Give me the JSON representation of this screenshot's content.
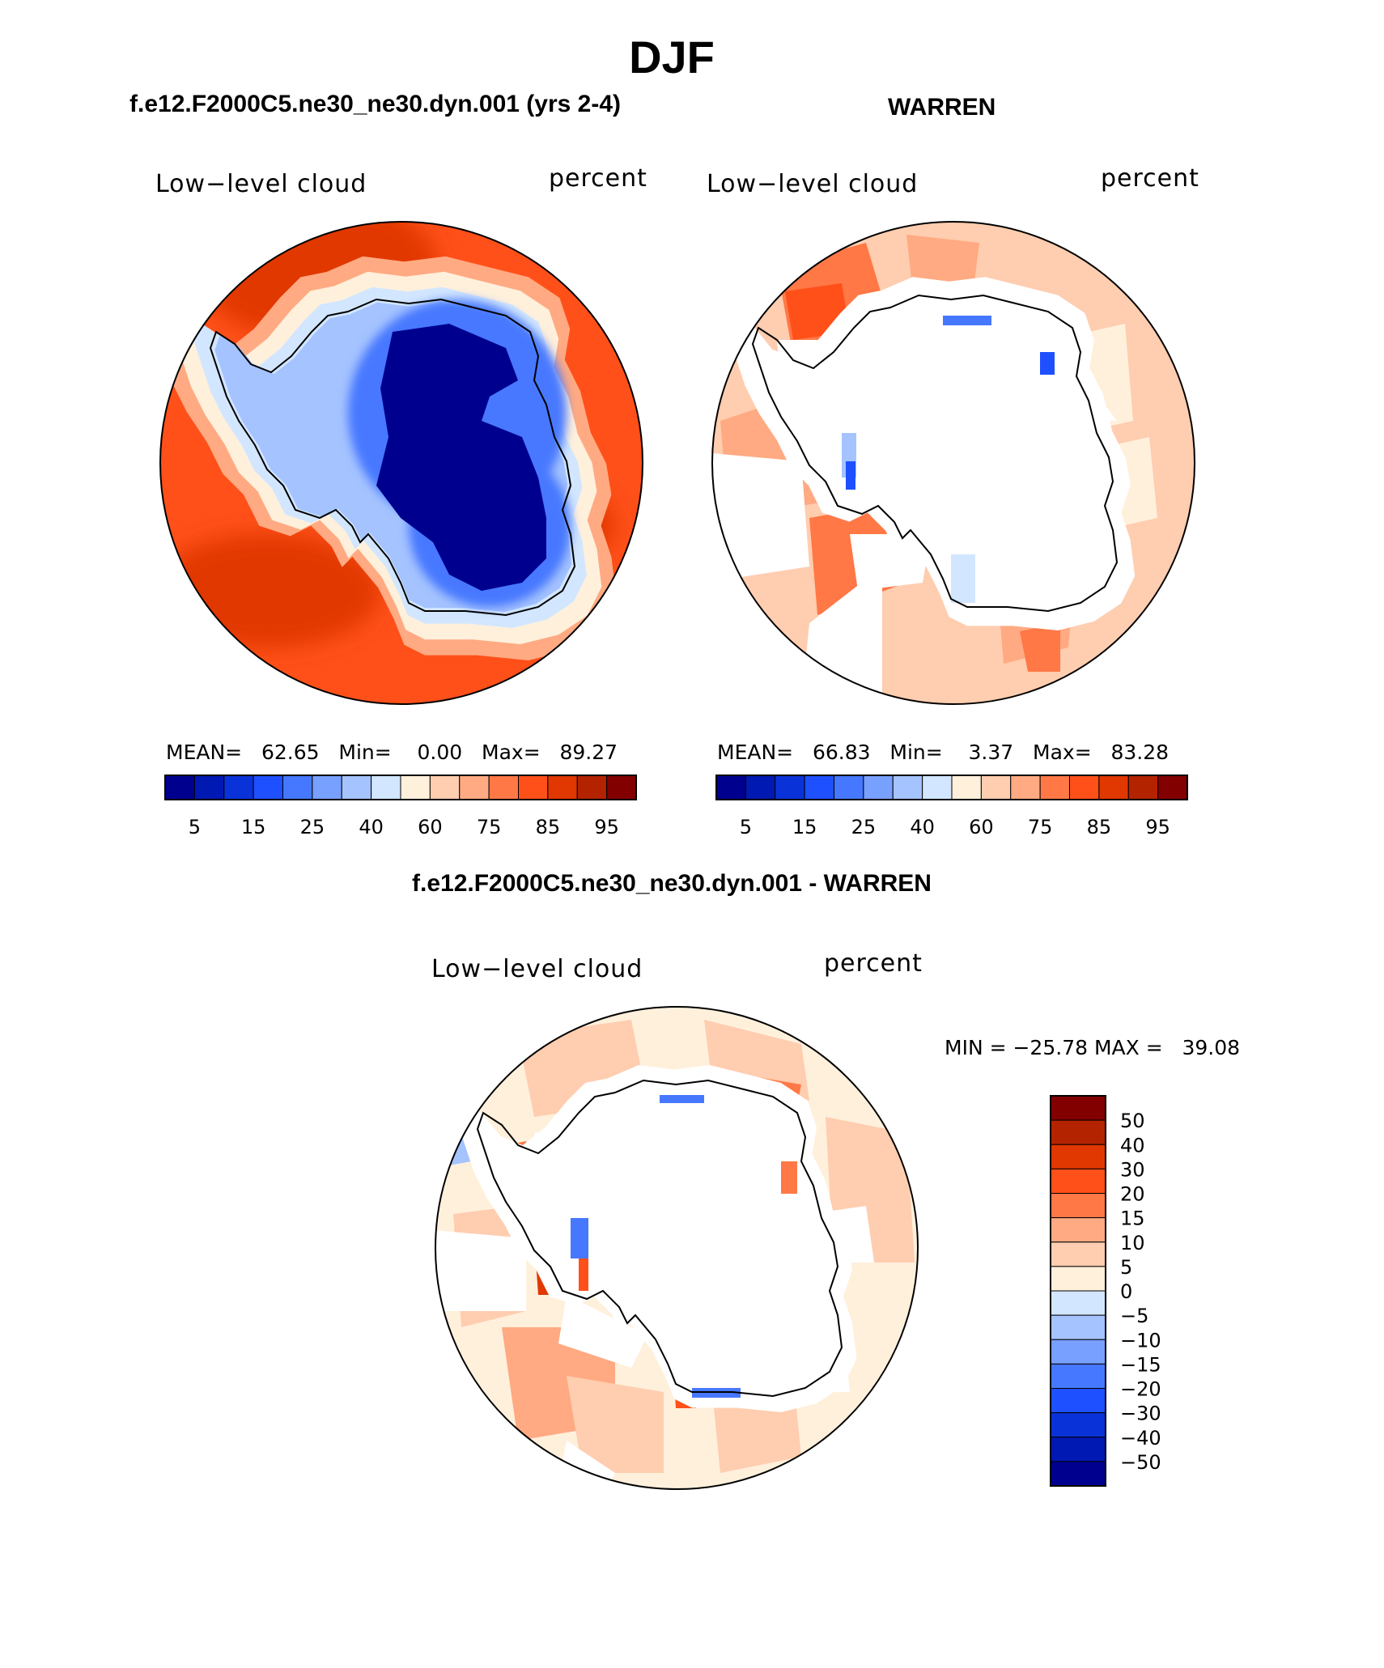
{
  "figure": {
    "title": "DJF",
    "panel_titles": {
      "model": "f.e12.F2000C5.ne30_ne30.dyn.001 (yrs 2-4)",
      "obs": "WARREN",
      "diff": "f.e12.F2000C5.ne30_ne30.dyn.001 - WARREN"
    }
  },
  "panels": {
    "model": {
      "variable": "Low−level cloud",
      "units": "percent",
      "mean_label": "MEAN=",
      "mean_value": "62.65",
      "min_label": "Min=",
      "min_value": "0.00",
      "max_label": "Max=",
      "max_value": "89.27"
    },
    "obs": {
      "variable": "Low−level cloud",
      "units": "percent",
      "mean_label": "MEAN=",
      "mean_value": "66.83",
      "min_label": "Min=",
      "min_value": "3.37",
      "max_label": "Max=",
      "max_value": "83.28"
    },
    "diff": {
      "variable": "Low−level cloud",
      "units": "percent",
      "minmax_text": "MIN = −25.78 MAX =   39.08"
    }
  },
  "abs_colorbar": {
    "colors": [
      "#00008f",
      "#0019b3",
      "#0a32d9",
      "#1e50ff",
      "#4678ff",
      "#78a0ff",
      "#a5c3ff",
      "#d2e6ff",
      "#fff0dc",
      "#ffcdaf",
      "#ffaa82",
      "#ff7846",
      "#ff5019",
      "#e13700",
      "#b42300",
      "#820000"
    ],
    "tick_labels": [
      "5",
      "15",
      "25",
      "40",
      "60",
      "75",
      "85",
      "95"
    ]
  },
  "diff_colorbar": {
    "colors_top_to_bottom": [
      "#820000",
      "#b42300",
      "#e13700",
      "#ff5019",
      "#ff7846",
      "#ffaa82",
      "#ffcdaf",
      "#fff0dc",
      "#d2e6ff",
      "#a5c3ff",
      "#78a0ff",
      "#4678ff",
      "#1e50ff",
      "#0a32d9",
      "#0019b3",
      "#00008f"
    ],
    "tick_labels": [
      "50",
      "40",
      "30",
      "20",
      "15",
      "10",
      "5",
      "0",
      "−5",
      "−10",
      "−15",
      "−20",
      "−30",
      "−40",
      "−50"
    ]
  }
}
